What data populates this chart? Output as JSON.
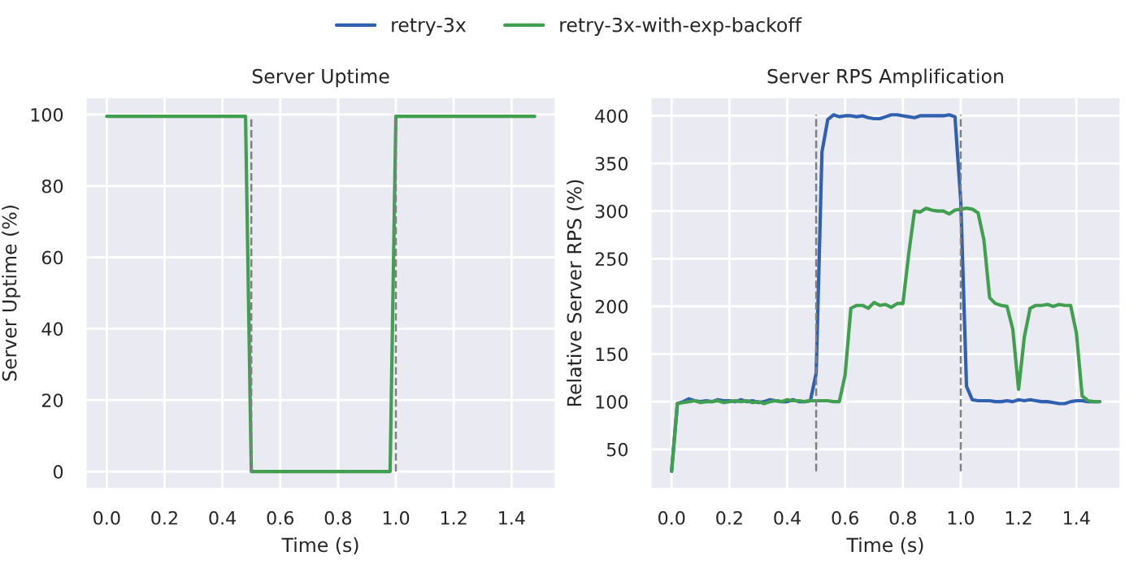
{
  "chart_data": [
    {
      "type": "line",
      "title": "Server Uptime",
      "xlabel": "Time (s)",
      "ylabel": "Server Uptime (%)",
      "grid": true,
      "x": [
        0,
        0.02,
        0.04,
        0.06,
        0.08,
        0.1,
        0.12,
        0.14,
        0.16,
        0.18,
        0.2,
        0.22,
        0.24,
        0.26,
        0.28,
        0.3,
        0.32,
        0.34,
        0.36,
        0.38,
        0.4,
        0.42,
        0.44,
        0.46,
        0.48,
        0.5,
        0.52,
        0.54,
        0.56,
        0.58,
        0.6,
        0.62,
        0.64,
        0.66,
        0.68,
        0.7,
        0.72,
        0.74,
        0.76,
        0.78,
        0.8,
        0.82,
        0.84,
        0.86,
        0.88,
        0.9,
        0.92,
        0.94,
        0.96,
        0.98,
        1.0,
        1.02,
        1.04,
        1.06,
        1.08,
        1.1,
        1.12,
        1.14,
        1.16,
        1.18,
        1.2,
        1.22,
        1.24,
        1.26,
        1.28,
        1.3,
        1.32,
        1.34,
        1.36,
        1.38,
        1.4,
        1.42,
        1.44,
        1.46,
        1.48
      ],
      "xlim": [
        -0.074,
        1.554
      ],
      "ylim": [
        -5,
        105
      ],
      "xticks": [
        {
          "value": 0,
          "label": "0.0"
        },
        {
          "value": 0.2,
          "label": "0.2"
        },
        {
          "value": 0.4,
          "label": "0.4"
        },
        {
          "value": 0.6,
          "label": "0.6"
        },
        {
          "value": 0.8,
          "label": "0.8"
        },
        {
          "value": 1.0,
          "label": "1.0"
        },
        {
          "value": 1.2,
          "label": "1.2"
        },
        {
          "value": 1.4,
          "label": "1.4"
        }
      ],
      "yticks": [
        0,
        20,
        40,
        60,
        80,
        100
      ],
      "ref_lines": [
        {
          "axis": "x",
          "value": 0.5,
          "color": "#808080",
          "line_style": "dashed"
        },
        {
          "axis": "x",
          "value": 1.0,
          "color": "#808080",
          "line_style": "dashed"
        }
      ],
      "series": [
        {
          "color": "#40a050",
          "values": [
            99.5,
            99.5,
            99.5,
            99.5,
            99.5,
            99.5,
            99.5,
            99.5,
            99.5,
            99.5,
            99.5,
            99.5,
            99.5,
            99.5,
            99.5,
            99.5,
            99.5,
            99.5,
            99.5,
            99.5,
            99.5,
            99.5,
            99.5,
            99.5,
            99.5,
            0,
            0,
            0,
            0,
            0,
            0,
            0,
            0,
            0,
            0,
            0,
            0,
            0,
            0,
            0,
            0,
            0,
            0,
            0,
            0,
            0,
            0,
            0,
            0,
            0,
            99.5,
            99.5,
            99.5,
            99.5,
            99.5,
            99.5,
            99.5,
            99.5,
            99.5,
            99.5,
            99.5,
            99.5,
            99.5,
            99.5,
            99.5,
            99.5,
            99.5,
            99.5,
            99.5,
            99.5,
            99.5,
            99.5,
            99.5,
            99.5,
            99.5
          ]
        }
      ]
    },
    {
      "type": "line",
      "title": "Server RPS Amplification",
      "xlabel": "Time (s)",
      "ylabel": "Relative Server RPS (%)",
      "legend": "top",
      "grid": true,
      "x": [
        0,
        0.02,
        0.04,
        0.06,
        0.08,
        0.1,
        0.12,
        0.14,
        0.16,
        0.18,
        0.2,
        0.22,
        0.24,
        0.26,
        0.28,
        0.3,
        0.32,
        0.34,
        0.36,
        0.38,
        0.4,
        0.42,
        0.44,
        0.46,
        0.48,
        0.5,
        0.52,
        0.54,
        0.56,
        0.58,
        0.6,
        0.62,
        0.64,
        0.66,
        0.68,
        0.7,
        0.72,
        0.74,
        0.76,
        0.78,
        0.8,
        0.82,
        0.84,
        0.86,
        0.88,
        0.9,
        0.92,
        0.94,
        0.96,
        0.98,
        1.0,
        1.02,
        1.04,
        1.06,
        1.08,
        1.1,
        1.12,
        1.14,
        1.16,
        1.18,
        1.2,
        1.22,
        1.24,
        1.26,
        1.28,
        1.3,
        1.32,
        1.34,
        1.36,
        1.38,
        1.4,
        1.42,
        1.44,
        1.46,
        1.48
      ],
      "xlim": [
        -0.074,
        1.554
      ],
      "ylim": [
        8,
        420
      ],
      "xticks": [
        {
          "value": 0,
          "label": "0.0"
        },
        {
          "value": 0.2,
          "label": "0.2"
        },
        {
          "value": 0.4,
          "label": "0.4"
        },
        {
          "value": 0.6,
          "label": "0.6"
        },
        {
          "value": 0.8,
          "label": "0.8"
        },
        {
          "value": 1.0,
          "label": "1.0"
        },
        {
          "value": 1.2,
          "label": "1.2"
        },
        {
          "value": 1.4,
          "label": "1.4"
        }
      ],
      "yticks": [
        50,
        100,
        150,
        200,
        250,
        300,
        350,
        400
      ],
      "ref_lines": [
        {
          "axis": "x",
          "value": 0.5,
          "color": "#808080",
          "line_style": "dashed"
        },
        {
          "axis": "x",
          "value": 1.0,
          "color": "#808080",
          "line_style": "dashed"
        }
      ],
      "series": [
        {
          "name": "retry-3x",
          "color": "#3060b0",
          "values": [
            27,
            98,
            100,
            103,
            101,
            100,
            101,
            100,
            102,
            101,
            101,
            100,
            102,
            100,
            101,
            99,
            100,
            102,
            101,
            100,
            100,
            102,
            100,
            100,
            101,
            130,
            362,
            396,
            401,
            399,
            400,
            400,
            399,
            400,
            398,
            397,
            397,
            399,
            401,
            401,
            400,
            399,
            398,
            400,
            400,
            400,
            400,
            400,
            401,
            399,
            311,
            116,
            102,
            101,
            101,
            101,
            100,
            100,
            101,
            100,
            102,
            101,
            102,
            101,
            100,
            100,
            99,
            98,
            98,
            100,
            101,
            101,
            100,
            100,
            100
          ]
        },
        {
          "name": "retry-3x-with-exp-backoff",
          "color": "#40a050",
          "values": [
            27,
            98,
            99,
            100,
            101,
            99,
            100,
            100,
            101,
            99,
            100,
            101,
            100,
            101,
            99,
            100,
            98,
            100,
            101,
            100,
            102,
            101,
            101,
            100,
            101,
            101,
            101,
            101,
            100,
            100,
            128,
            198,
            201,
            201,
            198,
            204,
            201,
            202,
            199,
            203,
            203,
            255,
            300,
            299,
            303,
            301,
            300,
            300,
            297,
            301,
            302,
            303,
            302,
            298,
            270,
            209,
            203,
            201,
            200,
            176,
            113,
            168,
            198,
            201,
            201,
            202,
            200,
            202,
            201,
            201,
            172,
            106,
            101,
            100,
            100
          ]
        }
      ]
    }
  ]
}
